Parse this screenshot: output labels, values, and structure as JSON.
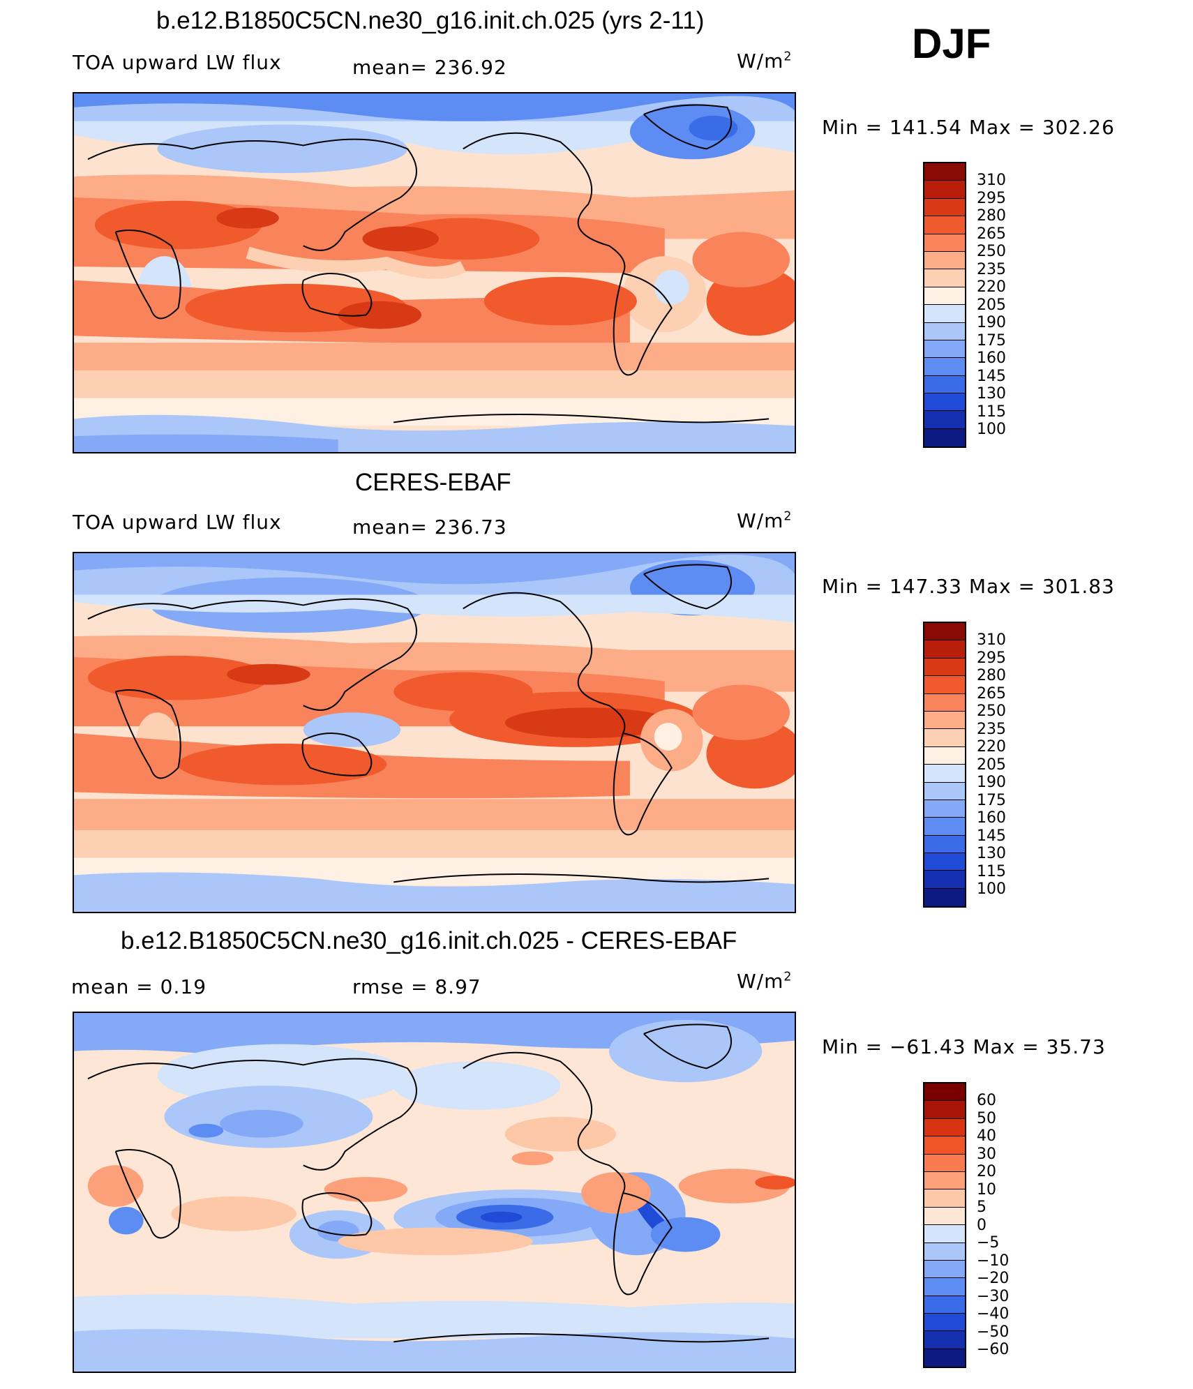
{
  "season": "DJF",
  "units": "W/m",
  "units_exp": "2",
  "colors": {
    "standard": [
      "#0c1a82",
      "#1430b0",
      "#1f4bd6",
      "#3b6ce8",
      "#5d8cf3",
      "#84a9f7",
      "#abc6f8",
      "#d4e4fb",
      "#fef0e2",
      "#fdd0b4",
      "#fcac86",
      "#f9835a",
      "#f05a2c",
      "#d93a16",
      "#b81e0a",
      "#8a0a04"
    ],
    "difference": [
      "#0c1a82",
      "#1430b0",
      "#1f4bd6",
      "#3b6ce8",
      "#5d8cf3",
      "#84a9f7",
      "#abc6f8",
      "#d4e4fb",
      "#fde6d6",
      "#fdc8a8",
      "#fca07a",
      "#f97a4e",
      "#f05528",
      "#d83412",
      "#a81508",
      "#7a0000"
    ]
  },
  "panels": [
    {
      "title": "b.e12.B1850C5CN.ne30_g16.init.ch.025 (yrs 2-11)",
      "left_label": "TOA upward LW flux",
      "mean_label": "mean= 236.92",
      "minmax": "Min  =  141.54  Max  =  302.26",
      "colorbar_ticks": [
        "310",
        "295",
        "280",
        "265",
        "250",
        "235",
        "220",
        "205",
        "190",
        "175",
        "160",
        "145",
        "130",
        "115",
        "100"
      ]
    },
    {
      "title": "CERES-EBAF",
      "left_label": "TOA upward LW flux",
      "mean_label": "mean= 236.73",
      "minmax": "Min  =  147.33  Max  =  301.83",
      "colorbar_ticks": [
        "310",
        "295",
        "280",
        "265",
        "250",
        "235",
        "220",
        "205",
        "190",
        "175",
        "160",
        "145",
        "130",
        "115",
        "100"
      ]
    },
    {
      "title": "b.e12.B1850C5CN.ne30_g16.init.ch.025 - CERES-EBAF",
      "left_label": "mean =     0.19",
      "mean_label": "rmse =     8.97",
      "minmax": "Min  =  −61.43  Max  =    35.73",
      "colorbar_ticks": [
        "60",
        "50",
        "40",
        "30",
        "20",
        "10",
        "5",
        "0",
        "−5",
        "−10",
        "−20",
        "−30",
        "−40",
        "−50",
        "−60"
      ]
    }
  ]
}
